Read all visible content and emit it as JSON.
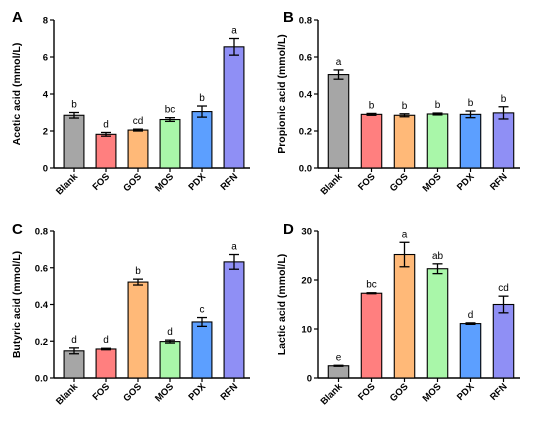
{
  "chart_data": [
    {
      "panel": "A",
      "type": "bar",
      "ylabel": "Acetic acid (mmol/L)",
      "categories": [
        "Blank",
        "FOS",
        "GOS",
        "MOS",
        "PDX",
        "RFN"
      ],
      "values": [
        2.85,
        1.82,
        2.05,
        2.62,
        3.05,
        6.55
      ],
      "errors": [
        0.15,
        0.1,
        0.05,
        0.1,
        0.3,
        0.45
      ],
      "labels": [
        "b",
        "d",
        "cd",
        "bc",
        "b",
        "a"
      ],
      "ylim": [
        0,
        8
      ],
      "yticks": [
        "0",
        "2",
        "4",
        "6",
        "8"
      ]
    },
    {
      "panel": "B",
      "type": "bar",
      "ylabel": "Propionic acid (mmol/L)",
      "categories": [
        "Blank",
        "FOS",
        "GOS",
        "MOS",
        "PDX",
        "RFN"
      ],
      "values": [
        0.505,
        0.29,
        0.285,
        0.292,
        0.29,
        0.298
      ],
      "errors": [
        0.025,
        0.005,
        0.008,
        0.005,
        0.018,
        0.033
      ],
      "labels": [
        "a",
        "b",
        "b",
        "b",
        "b",
        "b"
      ],
      "ylim": [
        0,
        0.8
      ],
      "yticks": [
        "0.0",
        "0.2",
        "0.4",
        "0.6",
        "0.8"
      ]
    },
    {
      "panel": "C",
      "type": "bar",
      "ylabel": "Butyric acid (mmol/L)",
      "categories": [
        "Blank",
        "FOS",
        "GOS",
        "MOS",
        "PDX",
        "RFN"
      ],
      "values": [
        0.148,
        0.158,
        0.522,
        0.198,
        0.305,
        0.632
      ],
      "errors": [
        0.016,
        0.004,
        0.016,
        0.008,
        0.024,
        0.04
      ],
      "labels": [
        "d",
        "d",
        "b",
        "d",
        "c",
        "a"
      ],
      "ylim": [
        0,
        0.8
      ],
      "yticks": [
        "0.0",
        "0.2",
        "0.4",
        "0.6",
        "0.8"
      ]
    },
    {
      "panel": "D",
      "type": "bar",
      "ylabel": "Lactic acid (mmol/L)",
      "categories": [
        "Blank",
        "FOS",
        "GOS",
        "MOS",
        "PDX",
        "RFN"
      ],
      "values": [
        2.5,
        17.3,
        25.2,
        22.3,
        11.1,
        15.0
      ],
      "errors": [
        0.1,
        0.1,
        2.5,
        1.0,
        0.15,
        1.7
      ],
      "labels": [
        "e",
        "bc",
        "a",
        "ab",
        "d",
        "cd"
      ],
      "ylim": [
        0,
        30
      ],
      "yticks": [
        "0",
        "10",
        "20",
        "30"
      ]
    }
  ],
  "colors": {
    "Blank": "#a6a6a6",
    "FOS": "#ff7f7f",
    "GOS": "#ffb978",
    "MOS": "#a9f7a9",
    "PDX": "#5c9fff",
    "RFN": "#8f8ff5"
  }
}
